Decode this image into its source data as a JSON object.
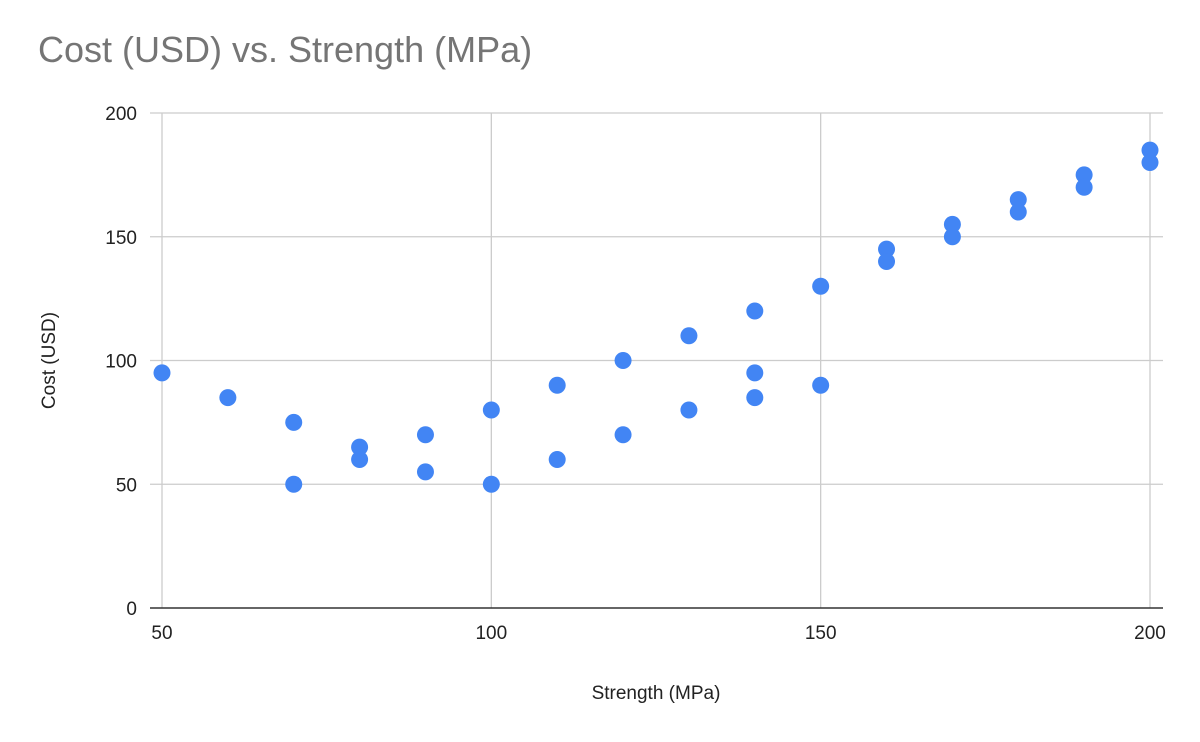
{
  "chart_data": {
    "type": "scatter",
    "title": "Cost (USD) vs. Strength (MPa)",
    "xlabel": "Strength (MPa)",
    "ylabel": "Cost (USD)",
    "xlim": [
      50,
      200
    ],
    "ylim": [
      0,
      200
    ],
    "x_ticks": [
      50,
      100,
      150,
      200
    ],
    "y_ticks": [
      0,
      50,
      100,
      150,
      200
    ],
    "grid": true,
    "legend": "none",
    "series": [
      {
        "name": "Cost (USD)",
        "color": "#4285f4",
        "points": [
          {
            "x": 50,
            "y": 95
          },
          {
            "x": 60,
            "y": 85
          },
          {
            "x": 70,
            "y": 75
          },
          {
            "x": 70,
            "y": 50
          },
          {
            "x": 80,
            "y": 65
          },
          {
            "x": 80,
            "y": 60
          },
          {
            "x": 90,
            "y": 70
          },
          {
            "x": 90,
            "y": 55
          },
          {
            "x": 100,
            "y": 80
          },
          {
            "x": 100,
            "y": 50
          },
          {
            "x": 110,
            "y": 90
          },
          {
            "x": 110,
            "y": 60
          },
          {
            "x": 120,
            "y": 100
          },
          {
            "x": 120,
            "y": 70
          },
          {
            "x": 130,
            "y": 110
          },
          {
            "x": 130,
            "y": 80
          },
          {
            "x": 140,
            "y": 120
          },
          {
            "x": 140,
            "y": 95
          },
          {
            "x": 140,
            "y": 85
          },
          {
            "x": 150,
            "y": 130
          },
          {
            "x": 150,
            "y": 90
          },
          {
            "x": 160,
            "y": 145
          },
          {
            "x": 160,
            "y": 140
          },
          {
            "x": 170,
            "y": 155
          },
          {
            "x": 170,
            "y": 150
          },
          {
            "x": 180,
            "y": 165
          },
          {
            "x": 180,
            "y": 160
          },
          {
            "x": 190,
            "y": 175
          },
          {
            "x": 190,
            "y": 170
          },
          {
            "x": 200,
            "y": 185
          },
          {
            "x": 200,
            "y": 180
          }
        ]
      }
    ]
  },
  "colors": {
    "grid": "#cccccc",
    "axis": "#333333",
    "title": "#757575",
    "text": "#222222",
    "point": "#4285f4"
  }
}
